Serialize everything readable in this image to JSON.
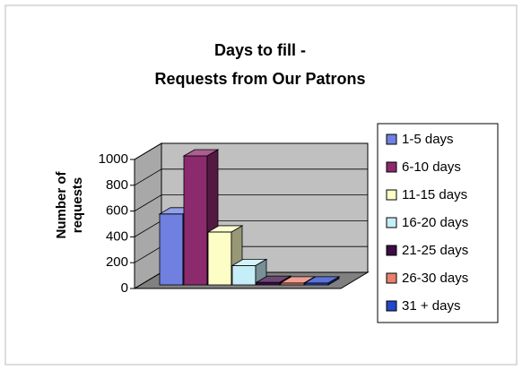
{
  "chart_data": {
    "type": "bar3d",
    "title": "Days to fill -\nRequests from Our Patrons",
    "y_label": "Number of\nrequests",
    "categories": [
      null
    ],
    "series": [
      {
        "name": "1-5 days",
        "color": "#6f80e0",
        "values": [
          550
        ]
      },
      {
        "name": "6-10 days",
        "color": "#8c2a6e",
        "values": [
          1000
        ]
      },
      {
        "name": "11-15 days",
        "color": "#fdfdc6",
        "values": [
          410
        ]
      },
      {
        "name": "16-20 days",
        "color": "#c6eef8",
        "values": [
          150
        ]
      },
      {
        "name": "21-25 days",
        "color": "#3e0c46",
        "values": [
          20
        ]
      },
      {
        "name": "26-30 days",
        "color": "#e8806e",
        "values": [
          15
        ]
      },
      {
        "name": "31 + days",
        "color": "#2446c8",
        "values": [
          15
        ]
      }
    ],
    "ylim": [
      0,
      1000
    ],
    "yticks": [
      0,
      200,
      400,
      600,
      800,
      1000
    ],
    "grid": true,
    "legend": "right"
  }
}
